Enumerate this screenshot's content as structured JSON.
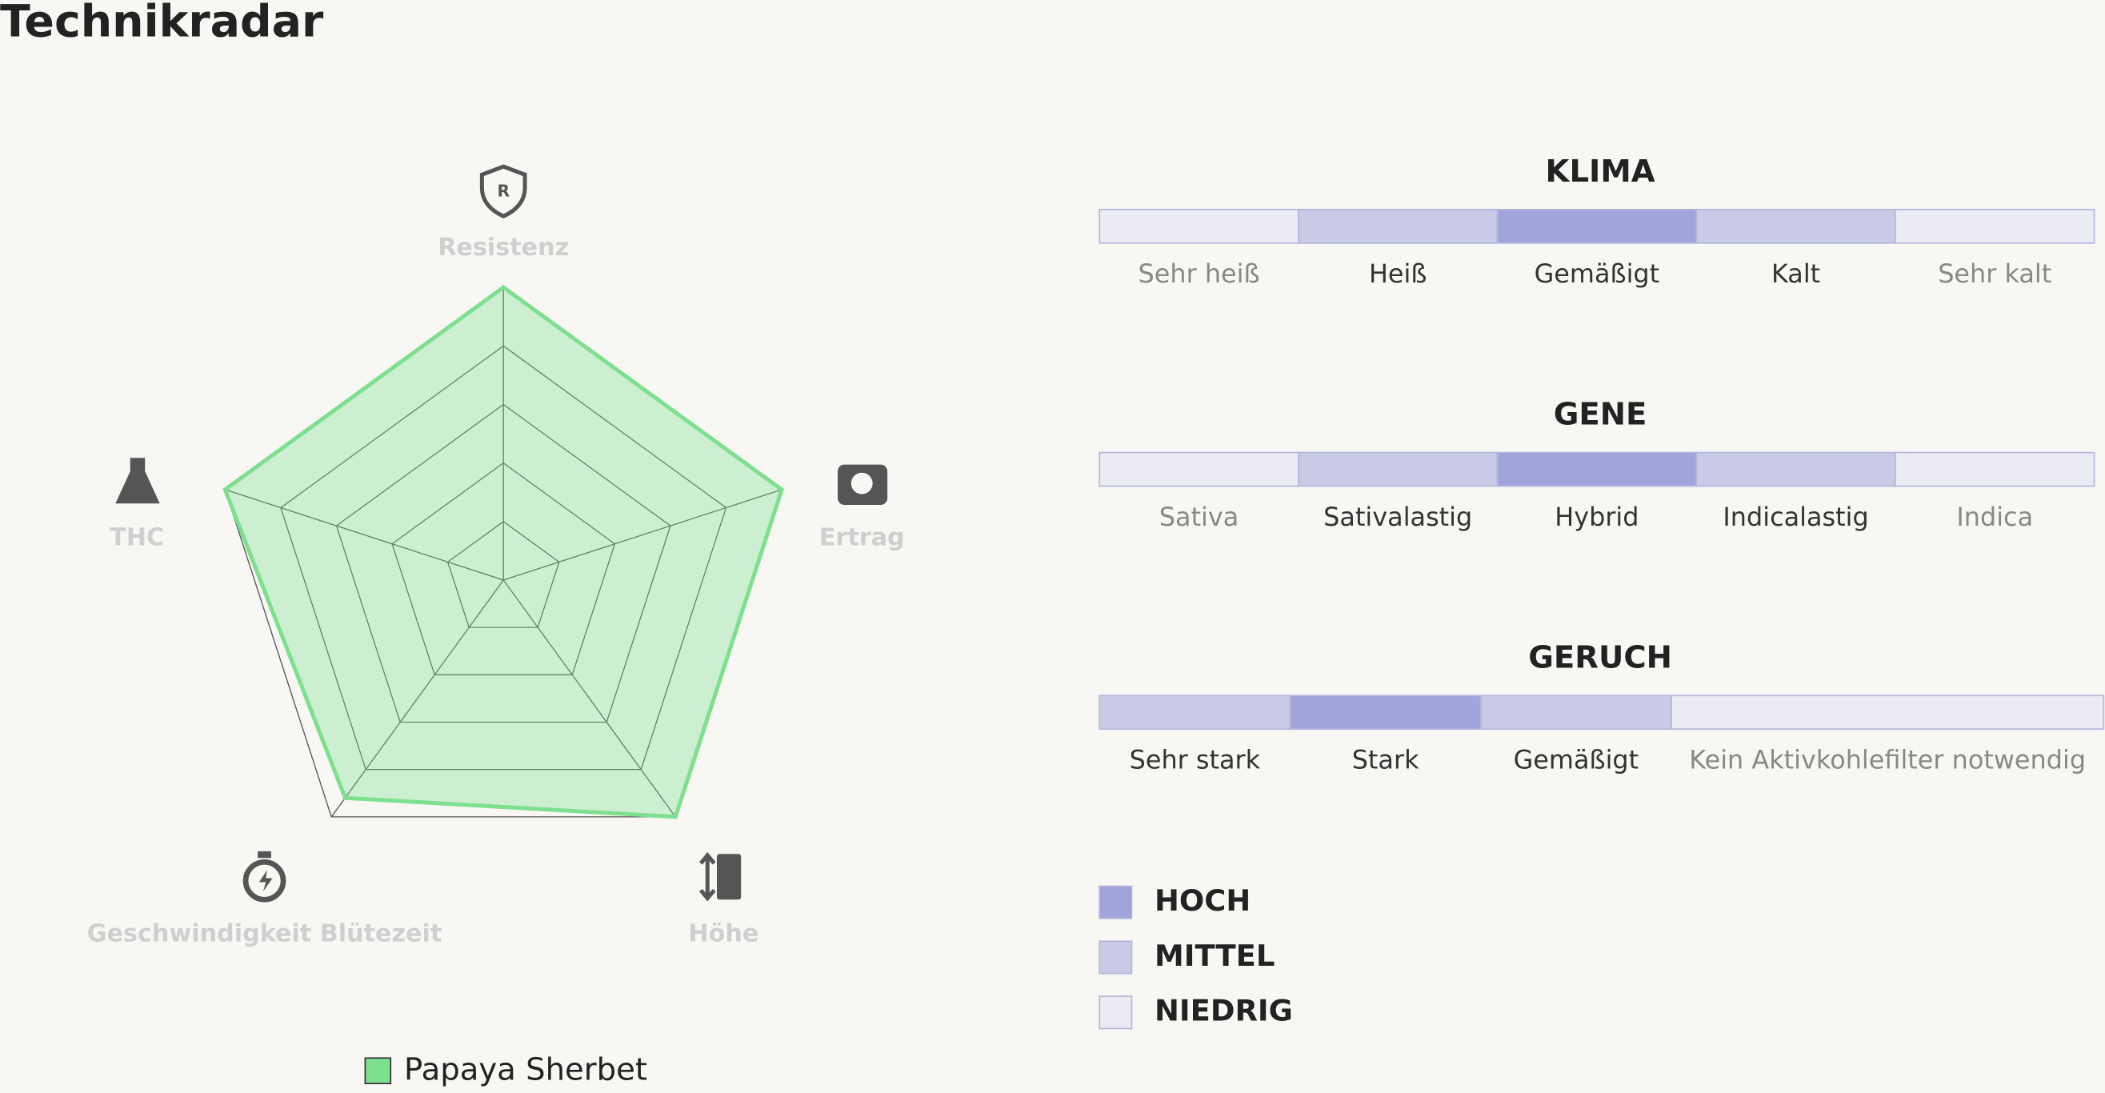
{
  "chart_data": {
    "type": "radar",
    "title": "Technikradar",
    "categories": [
      "Resistenz",
      "Ertrag",
      "Höhe",
      "Geschwindigkeit Blütezeit",
      "THC"
    ],
    "series": [
      {
        "name": "Papaya Sherbet",
        "color": "#7ee08f",
        "values": [
          5,
          5,
          5,
          4.6,
          5
        ]
      }
    ],
    "rlim": [
      0,
      5
    ],
    "rticks": [
      1,
      2,
      3,
      4,
      5
    ],
    "grid": true
  },
  "scales": [
    {
      "title": "KLIMA",
      "options": [
        {
          "label": "Sehr heiß",
          "level": "NIEDRIG"
        },
        {
          "label": "Heiß",
          "level": "MITTEL"
        },
        {
          "label": "Gemäßigt",
          "level": "HOCH"
        },
        {
          "label": "Kalt",
          "level": "MITTEL"
        },
        {
          "label": "Sehr kalt",
          "level": "NIEDRIG"
        }
      ]
    },
    {
      "title": "GENE",
      "options": [
        {
          "label": "Sativa",
          "level": "NIEDRIG"
        },
        {
          "label": "Sativalastig",
          "level": "MITTEL"
        },
        {
          "label": "Hybrid",
          "level": "HOCH"
        },
        {
          "label": "Indicalastig",
          "level": "MITTEL"
        },
        {
          "label": "Indica",
          "level": "NIEDRIG"
        }
      ]
    },
    {
      "title": "GERUCH",
      "options": [
        {
          "label": "Sehr stark",
          "level": "MITTEL"
        },
        {
          "label": "Stark",
          "level": "HOCH"
        },
        {
          "label": "Gemäßigt",
          "level": "MITTEL"
        },
        {
          "label": "Kein Aktivkohlefilter notwendig",
          "level": "NIEDRIG"
        }
      ]
    }
  ],
  "legend": [
    {
      "label": "HOCH",
      "color": "#a0a4da"
    },
    {
      "label": "MITTEL",
      "color": "#c9cbe6"
    },
    {
      "label": "NIEDRIG",
      "color": "#ebebf3"
    }
  ]
}
